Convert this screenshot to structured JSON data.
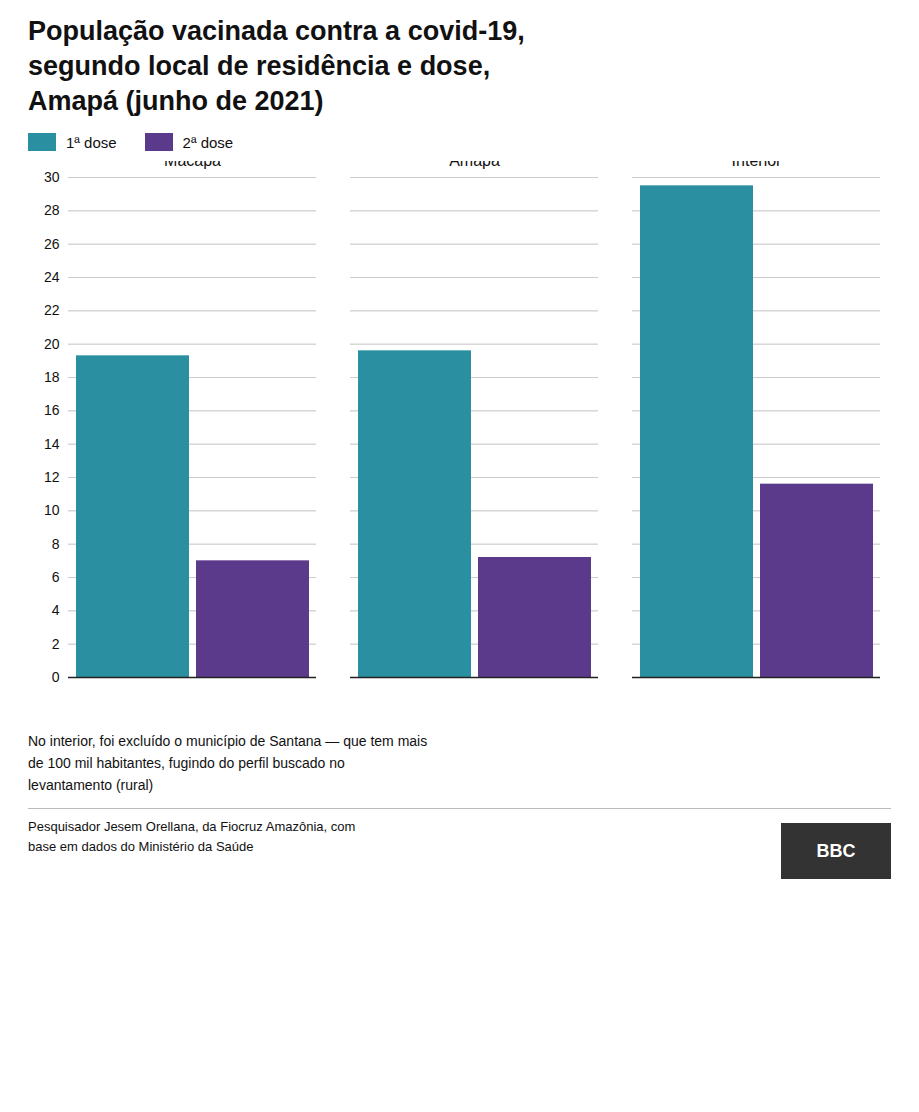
{
  "chart_data": {
    "type": "bar",
    "title": "População vacinada contra a covid-19,\nsegundo local de residência e dose,\nAmapá (junho de 2021)",
    "categories": [
      "Macapá",
      "Amapá",
      "Interior"
    ],
    "series": [
      {
        "name": "1ª dose",
        "color": "#2a8fa0",
        "values": [
          19.3,
          19.6,
          29.5
        ]
      },
      {
        "name": "2ª dose",
        "color": "#5b3a8c",
        "values": [
          7.0,
          7.2,
          11.6
        ]
      }
    ],
    "ylim": [
      0,
      30
    ],
    "yticks": [
      0,
      2,
      4,
      6,
      8,
      10,
      12,
      14,
      16,
      18,
      20,
      22,
      24,
      26,
      28,
      30
    ],
    "grid": true,
    "legend": "top left",
    "caption": "No interior, foi excluído o município de Santana — que tem mais\nde 100 mil habitantes, fugindo do perfil buscado no\nlevantamento (rural)",
    "source": "Pesquisador Jesem Orellana, da Fiocruz Amazônia, com\nbase em dados do Ministério da Saúde",
    "annotations": [
      "BBC"
    ]
  }
}
